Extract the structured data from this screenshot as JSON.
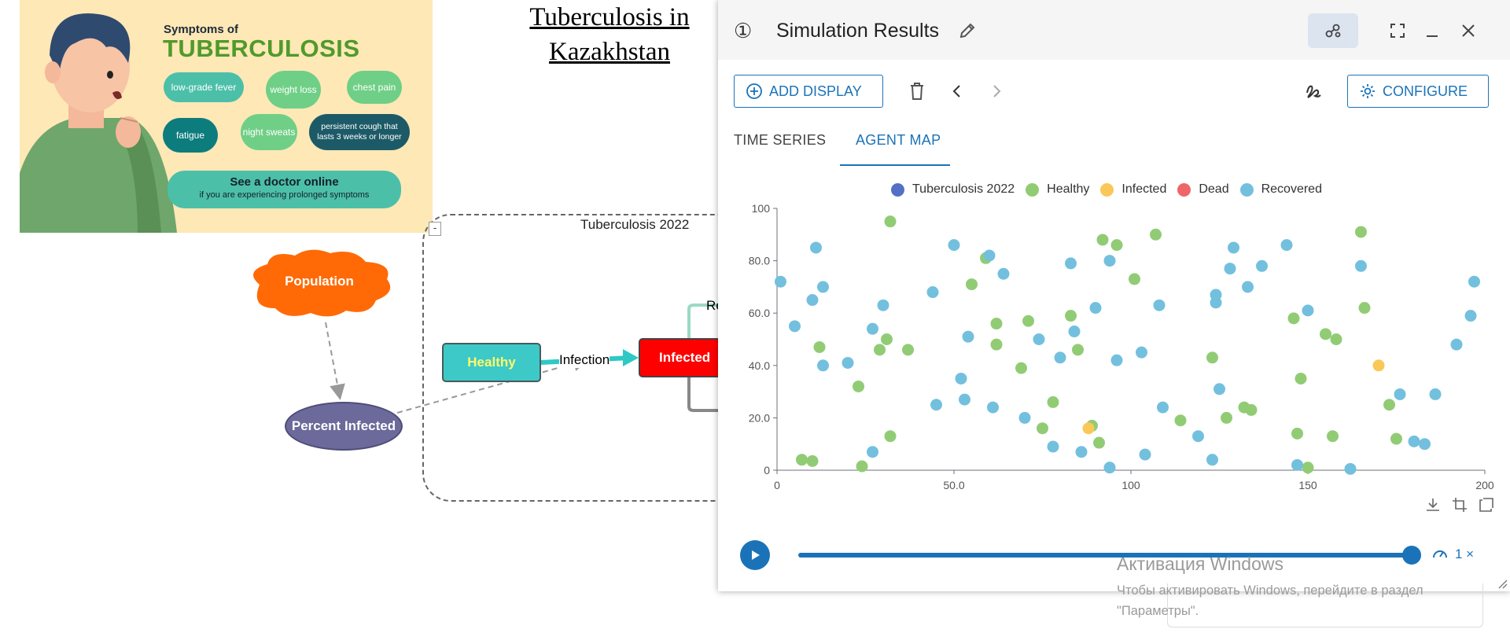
{
  "infographic": {
    "title_small": "Symptoms of",
    "title_big": "TUBERCULOSIS",
    "symptoms": [
      "low-grade fever",
      "weight loss",
      "chest pain",
      "fatigue",
      "night sweats",
      "persistent cough that lasts 3 weeks or longer"
    ],
    "cta_title": "See a doctor online",
    "cta_subtitle": "if you are experiencing prolonged symptoms"
  },
  "model": {
    "title_line1": "Tuberculosis in",
    "title_line2": "Kazakhstan",
    "frame_title": "Tuberculosis 2022",
    "collapse_label": "-",
    "nodes": {
      "population": "Population",
      "percent_infected": "Percent Infected",
      "healthy": "Healthy",
      "infected": "Infected"
    },
    "flows": {
      "infection": "Infection",
      "recovery_partial": "Re"
    },
    "colors": {
      "population": "#ff6a06",
      "percent_infected": "#6b6a9a",
      "healthy": "#3cc9c7",
      "infected": "#ff0000",
      "recovery_flow": "#9bd9c6",
      "death_flow": "#888888"
    }
  },
  "sim": {
    "number": "①",
    "title": "Simulation Results",
    "buttons": {
      "add_display": "ADD DISPLAY",
      "configure": "CONFIGURE"
    },
    "tabs": [
      {
        "label": "TIME SERIES"
      },
      {
        "label": "AGENT MAP"
      }
    ],
    "active_tab": "AGENT MAP",
    "playback": {
      "speed": "1 ×",
      "progress": 1.0
    },
    "accent_color": "#1a73b8"
  },
  "chart_data": {
    "type": "scatter",
    "title": "",
    "xlabel": "",
    "ylabel": "",
    "xlim": [
      0,
      200
    ],
    "ylim": [
      0,
      100
    ],
    "x_ticks": [
      "0",
      "50.0",
      "100",
      "150",
      "200"
    ],
    "y_ticks": [
      "0",
      "20.0",
      "40.0",
      "60.0",
      "80.0",
      "100"
    ],
    "grid": false,
    "legend_position": "top-center",
    "legend": [
      {
        "name": "Tuberculosis 2022",
        "color": "#5470c6"
      },
      {
        "name": "Healthy",
        "color": "#91cc75"
      },
      {
        "name": "Infected",
        "color": "#fac858"
      },
      {
        "name": "Dead",
        "color": "#ee6666"
      },
      {
        "name": "Recovered",
        "color": "#73c0de"
      }
    ],
    "series": [
      {
        "name": "Healthy",
        "color": "#91cc75",
        "points": [
          [
            7,
            4
          ],
          [
            10,
            3.5
          ],
          [
            12,
            47
          ],
          [
            23,
            32
          ],
          [
            24,
            1.5
          ],
          [
            29,
            46
          ],
          [
            31,
            50
          ],
          [
            32,
            13
          ],
          [
            32,
            95
          ],
          [
            37,
            46
          ],
          [
            55,
            71
          ],
          [
            59,
            81
          ],
          [
            62,
            56
          ],
          [
            62,
            48
          ],
          [
            69,
            39
          ],
          [
            71,
            57
          ],
          [
            75,
            16
          ],
          [
            78,
            26
          ],
          [
            83,
            59
          ],
          [
            85,
            46
          ],
          [
            89,
            17
          ],
          [
            91,
            10.5
          ],
          [
            92,
            88
          ],
          [
            96,
            86
          ],
          [
            101,
            73
          ],
          [
            107,
            90
          ],
          [
            114,
            19
          ],
          [
            123,
            43
          ],
          [
            127,
            20
          ],
          [
            132,
            24
          ],
          [
            134,
            23
          ],
          [
            146,
            58
          ],
          [
            147,
            14
          ],
          [
            148,
            35
          ],
          [
            150,
            1
          ],
          [
            155,
            52
          ],
          [
            157,
            13
          ],
          [
            158,
            50
          ],
          [
            165,
            91
          ],
          [
            166,
            62
          ],
          [
            173,
            25
          ],
          [
            175,
            12
          ]
        ]
      },
      {
        "name": "Infected",
        "color": "#fac858",
        "points": [
          [
            88,
            16
          ],
          [
            170,
            40
          ]
        ]
      },
      {
        "name": "Recovered",
        "color": "#73c0de",
        "points": [
          [
            1,
            72
          ],
          [
            5,
            55
          ],
          [
            10,
            65
          ],
          [
            11,
            85
          ],
          [
            13,
            70
          ],
          [
            13,
            40
          ],
          [
            20,
            41
          ],
          [
            27,
            54
          ],
          [
            27,
            7
          ],
          [
            30,
            63
          ],
          [
            44,
            68
          ],
          [
            45,
            25
          ],
          [
            50,
            86
          ],
          [
            52,
            35
          ],
          [
            53,
            27
          ],
          [
            54,
            51
          ],
          [
            60,
            82
          ],
          [
            61,
            24
          ],
          [
            64,
            75
          ],
          [
            70,
            20
          ],
          [
            74,
            50
          ],
          [
            78,
            9
          ],
          [
            80,
            43
          ],
          [
            83,
            79
          ],
          [
            84,
            53
          ],
          [
            86,
            7
          ],
          [
            90,
            62
          ],
          [
            94,
            80
          ],
          [
            94,
            1
          ],
          [
            96,
            42
          ],
          [
            103,
            45
          ],
          [
            104,
            6
          ],
          [
            108,
            63
          ],
          [
            109,
            24
          ],
          [
            119,
            13
          ],
          [
            123,
            4
          ],
          [
            124,
            67
          ],
          [
            125,
            31
          ],
          [
            128,
            77
          ],
          [
            129,
            85
          ],
          [
            133,
            70
          ],
          [
            137,
            78
          ],
          [
            144,
            86
          ],
          [
            147,
            2
          ],
          [
            150,
            61
          ],
          [
            162,
            0.5
          ],
          [
            165,
            78
          ],
          [
            176,
            29
          ],
          [
            180,
            11
          ],
          [
            183,
            10
          ],
          [
            186,
            29
          ],
          [
            192,
            48
          ],
          [
            196,
            59
          ],
          [
            197,
            72
          ],
          [
            124,
            64
          ]
        ]
      }
    ]
  },
  "watermark": {
    "title": "Активация Windows",
    "subtitle": "Чтобы активировать Windows, перейдите в раздел \"Параметры\"."
  }
}
